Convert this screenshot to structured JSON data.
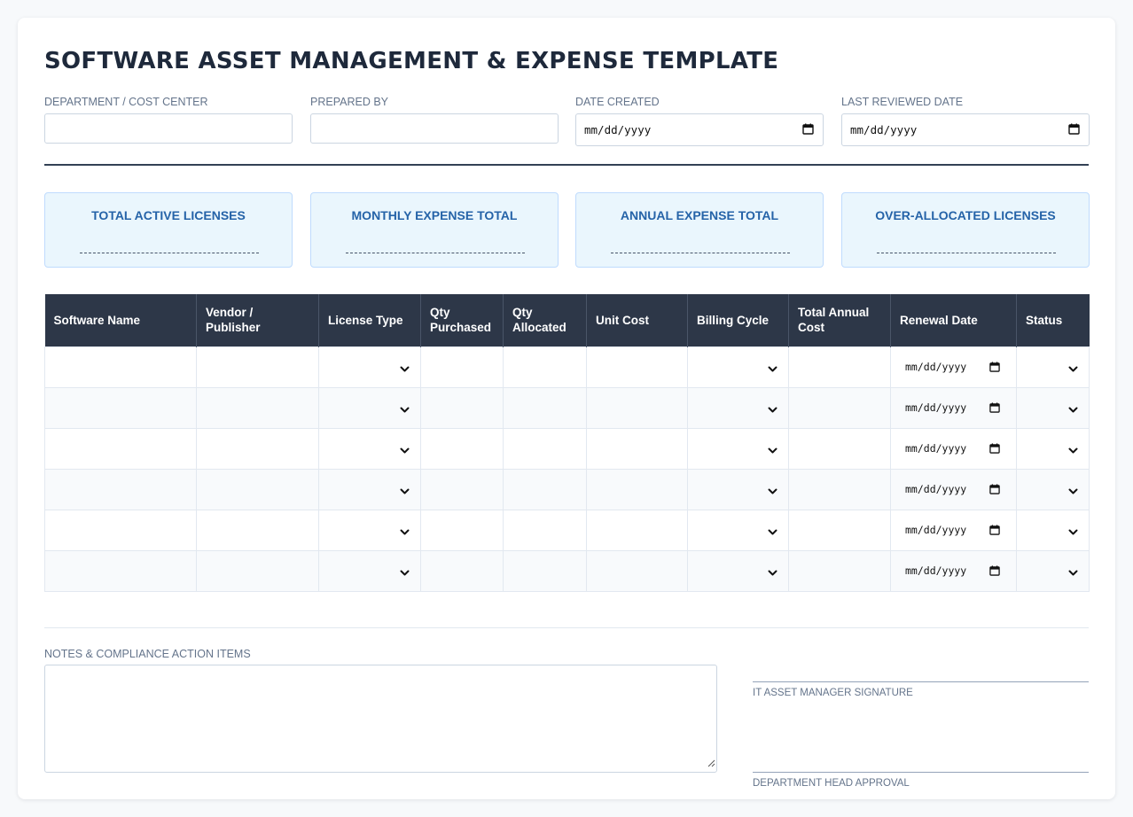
{
  "title": "SOFTWARE ASSET MANAGEMENT & EXPENSE TEMPLATE",
  "meta_fields": {
    "department": {
      "label": "DEPARTMENT / COST CENTER",
      "value": ""
    },
    "prepared_by": {
      "label": "PREPARED BY",
      "value": ""
    },
    "date_created": {
      "label": "DATE CREATED",
      "placeholder": "mm/dd/yyyy"
    },
    "last_reviewed": {
      "label": "LAST REVIEWED DATE",
      "placeholder": "mm/dd/yyyy"
    }
  },
  "stats": [
    {
      "label": "TOTAL ACTIVE LICENSES"
    },
    {
      "label": "MONTHLY EXPENSE TOTAL"
    },
    {
      "label": "ANNUAL EXPENSE TOTAL"
    },
    {
      "label": "OVER-ALLOCATED LICENSES"
    }
  ],
  "table": {
    "headers": [
      "Software Name",
      "Vendor / Publisher",
      "License Type",
      "Qty Purchased",
      "Qty Allocated",
      "Unit Cost",
      "Billing Cycle",
      "Total Annual Cost",
      "Renewal Date",
      "Status"
    ],
    "date_placeholder": "mm/dd/yyyy",
    "row_count": 6
  },
  "notes": {
    "label": "NOTES & COMPLIANCE ACTION ITEMS",
    "value": ""
  },
  "signatures": {
    "it_manager": "IT ASSET MANAGER SIGNATURE",
    "dept_head": "DEPARTMENT HEAD APPROVAL"
  },
  "icons": {
    "calendar": "calendar-icon",
    "dropdown": "chevron-down-icon",
    "resize": "resize-grip-icon"
  },
  "colors": {
    "header_bg": "#2d3748",
    "stat_bg": "#eaf6fd",
    "stat_text": "#2563a8",
    "title_text": "#1e293b"
  }
}
